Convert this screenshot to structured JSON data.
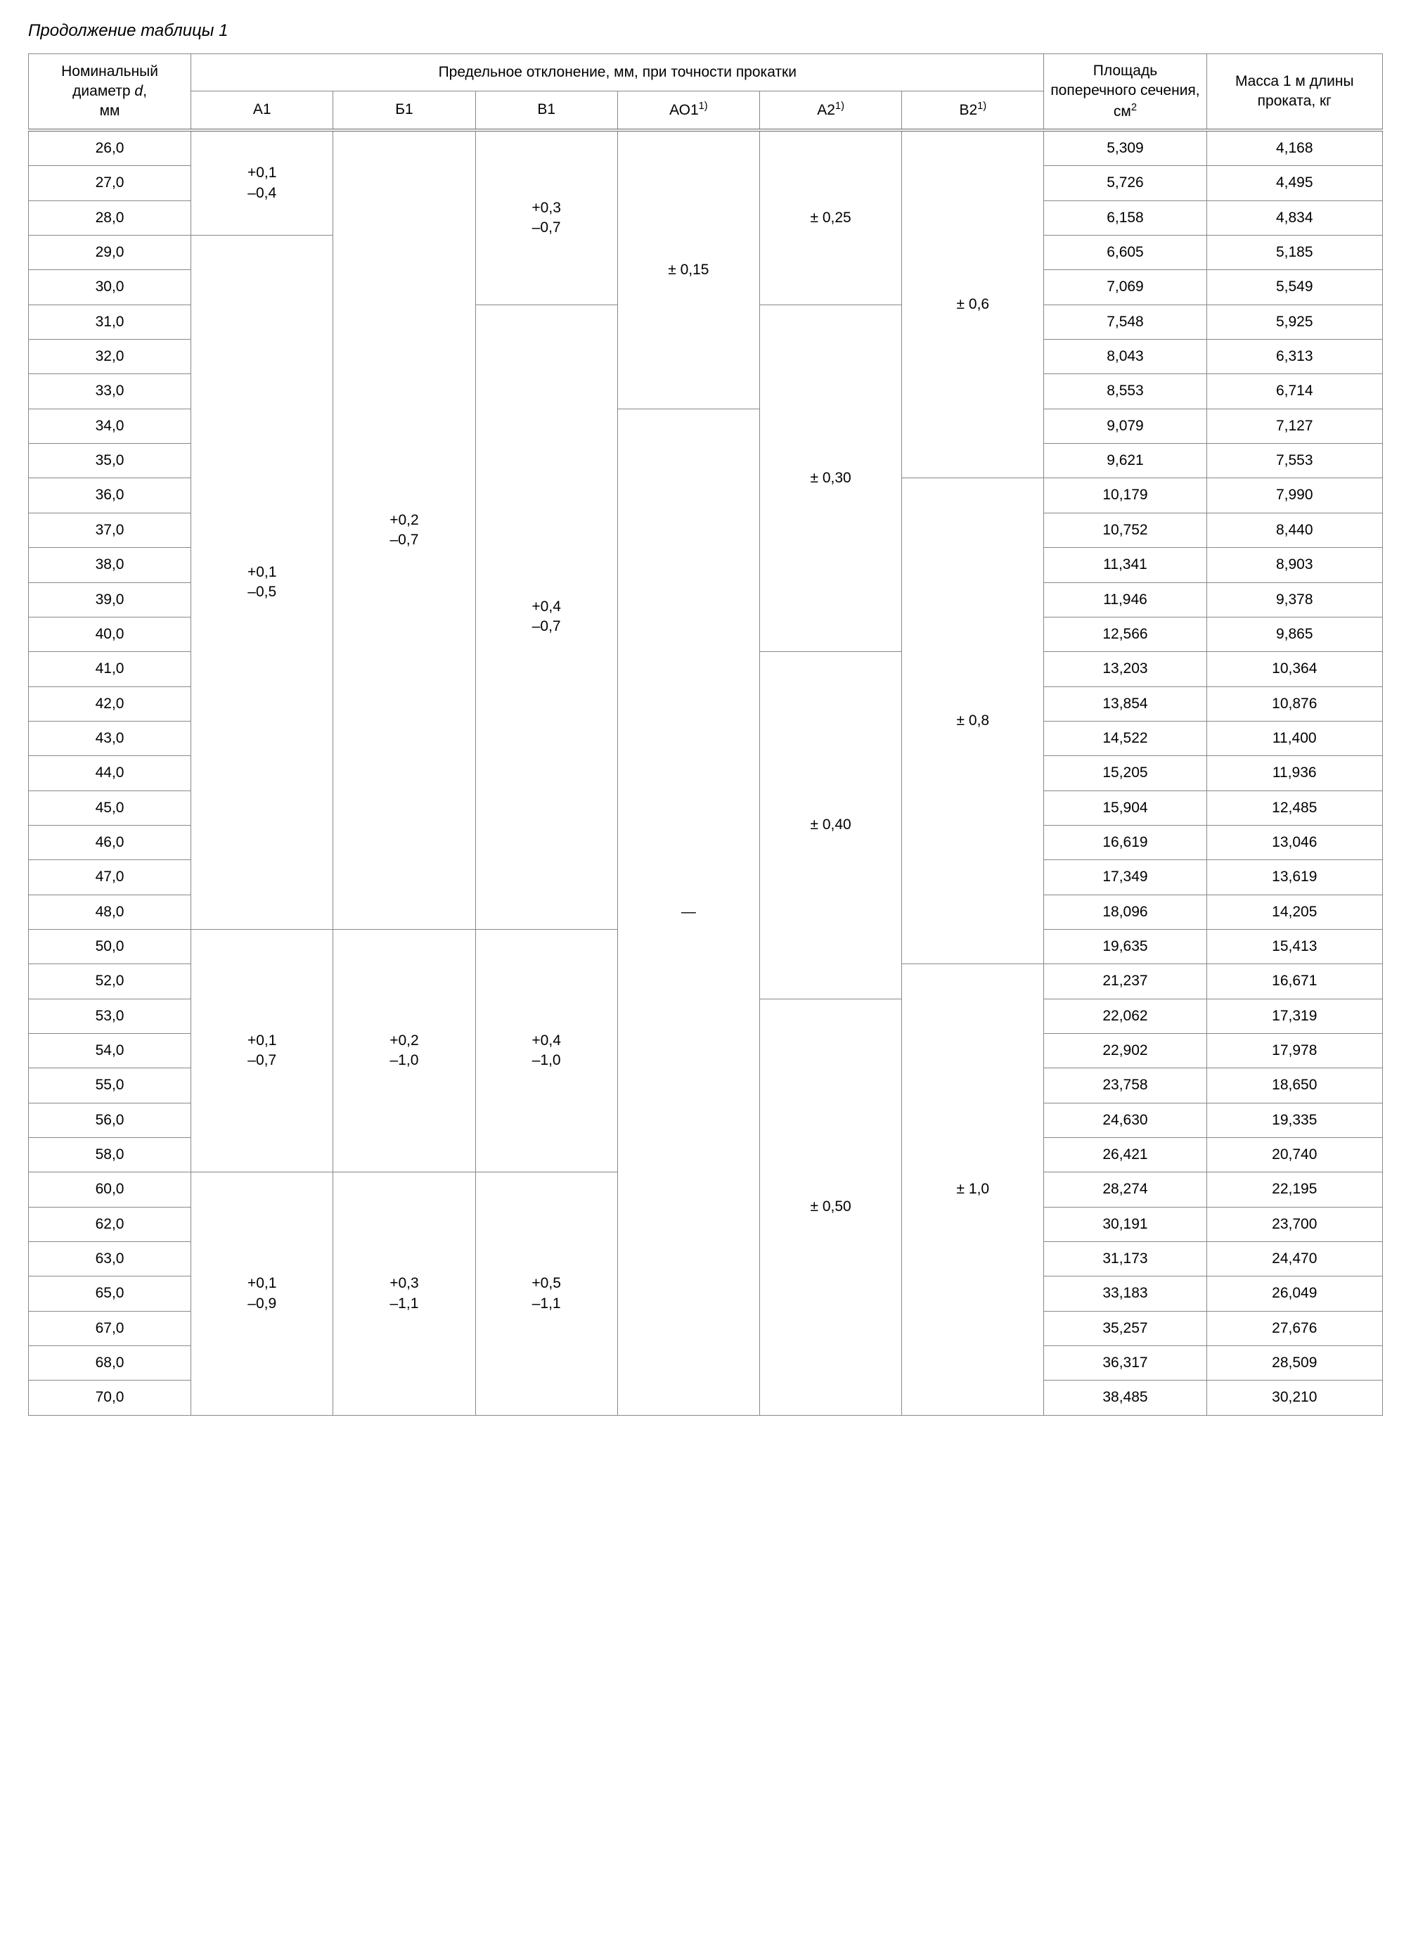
{
  "caption": "Продолжение таблицы 1",
  "headers": {
    "diameter": "Номинальный диаметр <i>d</i>,<br>мм",
    "deviation_group": "Предельное отклонение, мм, при точности прокатки",
    "area": "Площадь поперечного сечения, см<sup>2</sup>",
    "mass": "Масса 1 м длины проката, кг",
    "cols": [
      "А1",
      "Б1",
      "В1",
      "АО1<sup>1)</sup>",
      "А2<sup>1)</sup>",
      "В2<sup>1)</sup>"
    ]
  },
  "rows": [
    {
      "d": "26,0",
      "area": "5,309",
      "mass": "4,168"
    },
    {
      "d": "27,0",
      "area": "5,726",
      "mass": "4,495"
    },
    {
      "d": "28,0",
      "area": "6,158",
      "mass": "4,834"
    },
    {
      "d": "29,0",
      "area": "6,605",
      "mass": "5,185"
    },
    {
      "d": "30,0",
      "area": "7,069",
      "mass": "5,549"
    },
    {
      "d": "31,0",
      "area": "7,548",
      "mass": "5,925"
    },
    {
      "d": "32,0",
      "area": "8,043",
      "mass": "6,313"
    },
    {
      "d": "33,0",
      "area": "8,553",
      "mass": "6,714"
    },
    {
      "d": "34,0",
      "area": "9,079",
      "mass": "7,127"
    },
    {
      "d": "35,0",
      "area": "9,621",
      "mass": "7,553"
    },
    {
      "d": "36,0",
      "area": "10,179",
      "mass": "7,990"
    },
    {
      "d": "37,0",
      "area": "10,752",
      "mass": "8,440"
    },
    {
      "d": "38,0",
      "area": "11,341",
      "mass": "8,903"
    },
    {
      "d": "39,0",
      "area": "11,946",
      "mass": "9,378"
    },
    {
      "d": "40,0",
      "area": "12,566",
      "mass": "9,865"
    },
    {
      "d": "41,0",
      "area": "13,203",
      "mass": "10,364"
    },
    {
      "d": "42,0",
      "area": "13,854",
      "mass": "10,876"
    },
    {
      "d": "43,0",
      "area": "14,522",
      "mass": "11,400"
    },
    {
      "d": "44,0",
      "area": "15,205",
      "mass": "11,936"
    },
    {
      "d": "45,0",
      "area": "15,904",
      "mass": "12,485"
    },
    {
      "d": "46,0",
      "area": "16,619",
      "mass": "13,046"
    },
    {
      "d": "47,0",
      "area": "17,349",
      "mass": "13,619"
    },
    {
      "d": "48,0",
      "area": "18,096",
      "mass": "14,205"
    },
    {
      "d": "50,0",
      "area": "19,635",
      "mass": "15,413"
    },
    {
      "d": "52,0",
      "area": "21,237",
      "mass": "16,671"
    },
    {
      "d": "53,0",
      "area": "22,062",
      "mass": "17,319"
    },
    {
      "d": "54,0",
      "area": "22,902",
      "mass": "17,978"
    },
    {
      "d": "55,0",
      "area": "23,758",
      "mass": "18,650"
    },
    {
      "d": "56,0",
      "area": "24,630",
      "mass": "19,335"
    },
    {
      "d": "58,0",
      "area": "26,421",
      "mass": "20,740"
    },
    {
      "d": "60,0",
      "area": "28,274",
      "mass": "22,195"
    },
    {
      "d": "62,0",
      "area": "30,191",
      "mass": "23,700"
    },
    {
      "d": "63,0",
      "area": "31,173",
      "mass": "24,470"
    },
    {
      "d": "65,0",
      "area": "33,183",
      "mass": "26,049"
    },
    {
      "d": "67,0",
      "area": "35,257",
      "mass": "27,676"
    },
    {
      "d": "68,0",
      "area": "36,317",
      "mass": "28,509"
    },
    {
      "d": "70,0",
      "area": "38,485",
      "mass": "30,210"
    }
  ],
  "spans": {
    "A1": [
      {
        "start": 0,
        "span": 3,
        "text": "+0,1<br>–0,4"
      },
      {
        "start": 3,
        "span": 20,
        "text": "+0,1<br>–0,5"
      },
      {
        "start": 23,
        "span": 7,
        "text": "+0,1<br>–0,7"
      },
      {
        "start": 30,
        "span": 7,
        "text": "+0,1<br>–0,9"
      }
    ],
    "B1": [
      {
        "start": 0,
        "span": 23,
        "text": "+0,2<br>–0,7"
      },
      {
        "start": 23,
        "span": 7,
        "text": "+0,2<br>–1,0"
      },
      {
        "start": 30,
        "span": 7,
        "text": "+0,3<br>–1,1"
      }
    ],
    "V1": [
      {
        "start": 0,
        "span": 5,
        "text": "+0,3<br>–0,7"
      },
      {
        "start": 5,
        "span": 18,
        "text": "+0,4<br>–0,7"
      },
      {
        "start": 23,
        "span": 7,
        "text": "+0,4<br>–1,0"
      },
      {
        "start": 30,
        "span": 7,
        "text": "+0,5<br>–1,1"
      }
    ],
    "AO1": [
      {
        "start": 0,
        "span": 8,
        "text": "± 0,15"
      },
      {
        "start": 8,
        "span": 29,
        "text": "—"
      }
    ],
    "A2": [
      {
        "start": 0,
        "span": 5,
        "text": "± 0,25"
      },
      {
        "start": 5,
        "span": 10,
        "text": "± 0,30"
      },
      {
        "start": 15,
        "span": 10,
        "text": "± 0,40"
      },
      {
        "start": 25,
        "span": 12,
        "text": "± 0,50"
      }
    ],
    "V2": [
      {
        "start": 0,
        "span": 10,
        "text": "± 0,6"
      },
      {
        "start": 10,
        "span": 14,
        "text": "± 0,8"
      },
      {
        "start": 24,
        "span": 13,
        "text": "± 1,0"
      }
    ]
  },
  "style": {
    "border_color": "#888888",
    "font_family": "Arial",
    "header_double_border": true
  }
}
